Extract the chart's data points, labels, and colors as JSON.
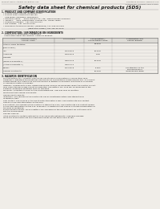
{
  "bg_color": "#f0ede8",
  "header_left": "Product Name: Lithium Ion Battery Cell",
  "header_right_line1": "Substance Number: SM5006AHCS",
  "header_right_line2": "Established / Revision: Dec.1.2010",
  "main_title": "Safety data sheet for chemical products (SDS)",
  "section1_title": "1. PRODUCT AND COMPANY IDENTIFICATION",
  "s1_items": [
    "Product name: Lithium Ion Battery Cell",
    "Product code: Cylindrical-type cell",
    "   (INR18650, INR18650, INR18650A)",
    "Company name:     Sanyo Electric Co., Ltd.  Mobile Energy Company",
    "Address:     2001, Kamiyashiro, Sumoto City, Hyogo, Japan",
    "Telephone number:   +81-799-26-4111",
    "Fax number:  +81-799-26-4120",
    "Emergency telephone number: (Weekdays) +81-799-26-3842",
    "                                         (Night and holiday) +81-799-26-4120"
  ],
  "section2_title": "2. COMPOSITION / INFORMATION ON INGREDIENTS",
  "s2_sub": "  Substance or preparation: Preparation",
  "s2_sub2": "  Information about the chemical nature of product:",
  "table_headers": [
    "Common name /",
    "CAS number",
    "Concentration /",
    "Classification and"
  ],
  "table_headers2": [
    "Several name",
    "",
    "Concentration range",
    "hazard labeling"
  ],
  "table_rows": [
    [
      "Lithium oxide tentative",
      "",
      "30-50%",
      ""
    ],
    [
      "(LiMnCoNiO2)",
      "",
      "",
      ""
    ],
    [
      "Iron",
      "7439-89-6",
      "15-25%",
      ""
    ],
    [
      "Aluminum",
      "7429-90-5",
      "2-8%",
      ""
    ],
    [
      "Graphite",
      "",
      "",
      ""
    ],
    [
      "(Made in graphite-1)",
      "7782-42-5",
      "10-25%",
      ""
    ],
    [
      "(Artificial graphite-1)",
      "7782-44-2",
      "",
      ""
    ],
    [
      "Copper",
      "7440-50-8",
      "5-15%",
      "Sensitization of the skin group No.2"
    ],
    [
      "Organic electrolyte",
      "",
      "10-20%",
      "Inflammable liquid"
    ]
  ],
  "section3_title": "3. HAZARDS IDENTIFICATION",
  "s3_paragraphs": [
    "For this battery cell, chemical substances are stored in a hermetically sealed steel case, designed to withstand temperatures and pressures encountered during normal use. As a result, during normal use, there is no physical danger of ignition or explosion and there is no danger of hazardous material leakage.",
    "  However, if exposed to a fire, added mechanical shocks, decomposed, when the electric current may cause the gas inside cannot be operated. The battery cell case will be breached of the extreme, hazardous materials may be released.",
    "  Moreover, if heated strongly by the surrounding fire, ionic gas may be emitted.",
    "  Most important hazard and effects:",
    "    Human health effects:",
    "      Inhalation: The release of the electrolyte has an anesthesia action and stimulates in respiratory tract.",
    "      Skin contact: The release of the electrolyte stimulates a skin. The electrolyte skin contact causes a sore and stimulation on the skin.",
    "      Eye contact: The release of the electrolyte stimulates eyes. The electrolyte eye contact causes a sore and stimulation on the eye. Especially, a substance that causes a strong inflammation of the eyes is contained.",
    "      Environmental effects: Since a battery cell remained in the environment, do not throw out it into the environment.",
    "  Specific hazards:",
    "    If the electrolyte contacts with water, it will generate detrimental hydrogen fluoride.",
    "    Since the used electrolyte is inflammable liquid, do not bring close to fire."
  ]
}
